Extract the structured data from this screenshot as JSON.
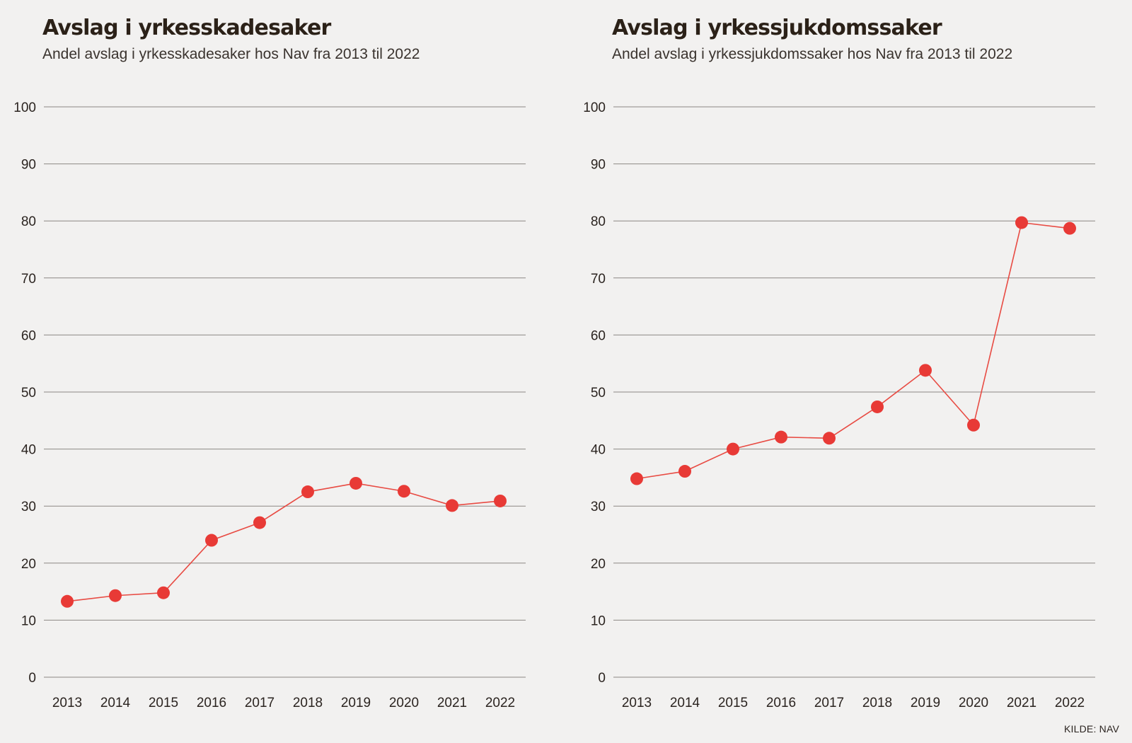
{
  "source": "KILDE: NAV",
  "colors": {
    "line": "#e84b43",
    "marker": "#e83a36",
    "grid": "#8c8884",
    "text": "#2b2420"
  },
  "chart_data": [
    {
      "type": "line",
      "title": "Avslag i yrkesskadesaker",
      "subtitle": "Andel avslag i yrkesskadesaker hos Nav fra 2013 til 2022",
      "xlabel": "",
      "ylabel": "",
      "ylim": [
        0,
        100
      ],
      "yticks": [
        0,
        10,
        20,
        30,
        40,
        50,
        60,
        70,
        80,
        90,
        100
      ],
      "categories": [
        "2013",
        "2014",
        "2015",
        "2016",
        "2017",
        "2018",
        "2019",
        "2020",
        "2021",
        "2022"
      ],
      "series": [
        {
          "name": "Andel avslag",
          "values": [
            13.3,
            14.3,
            14.8,
            24.0,
            27.1,
            32.5,
            34.0,
            32.6,
            30.1,
            30.9
          ]
        }
      ],
      "grid": true
    },
    {
      "type": "line",
      "title": "Avslag i yrkessjukdomssaker",
      "subtitle": "Andel avslag i yrkessjukdomssaker hos Nav fra 2013 til 2022",
      "xlabel": "",
      "ylabel": "",
      "ylim": [
        0,
        100
      ],
      "yticks": [
        0,
        10,
        20,
        30,
        40,
        50,
        60,
        70,
        80,
        90,
        100
      ],
      "categories": [
        "2013",
        "2014",
        "2015",
        "2016",
        "2017",
        "2018",
        "2019",
        "2020",
        "2021",
        "2022"
      ],
      "series": [
        {
          "name": "Andel avslag",
          "values": [
            34.8,
            36.1,
            40.0,
            42.1,
            41.9,
            47.4,
            53.8,
            44.2,
            79.7,
            78.7
          ]
        }
      ],
      "grid": true
    }
  ]
}
